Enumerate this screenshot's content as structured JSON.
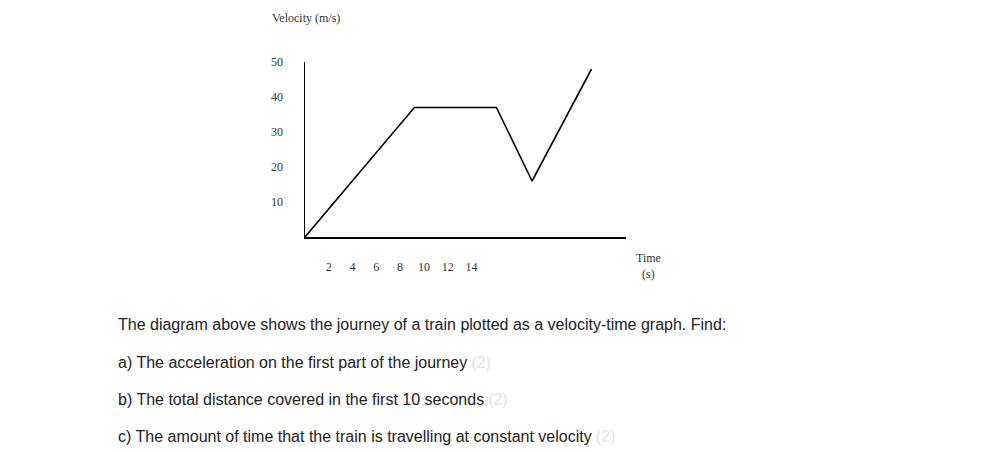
{
  "chart_data": {
    "type": "line",
    "xlabel": "Time\n(s)",
    "ylabel": "Velocity (m/s)",
    "x": [
      0,
      9.2,
      16.1,
      19.1,
      24.1
    ],
    "values": [
      0,
      37,
      37,
      16,
      48
    ],
    "color": "#000000",
    "xlim": [
      0,
      27
    ],
    "xticks": [
      2,
      4,
      6,
      8,
      10,
      12,
      14
    ],
    "ylim": [
      0,
      50
    ],
    "yticks": [
      10,
      20,
      30,
      40,
      50
    ],
    "grid": false
  },
  "question": {
    "intro": "The diagram above shows the journey of a train plotted as a velocity-time graph. Find:",
    "parts": [
      {
        "text": "a) The acceleration on the first part of the journey",
        "marks": "(2)"
      },
      {
        "text": "b) The total distance covered in the first 10 seconds",
        "marks": "(2)"
      },
      {
        "text": "c) The amount of time that the train is travelling at constant velocity",
        "marks": "(2)"
      }
    ]
  }
}
